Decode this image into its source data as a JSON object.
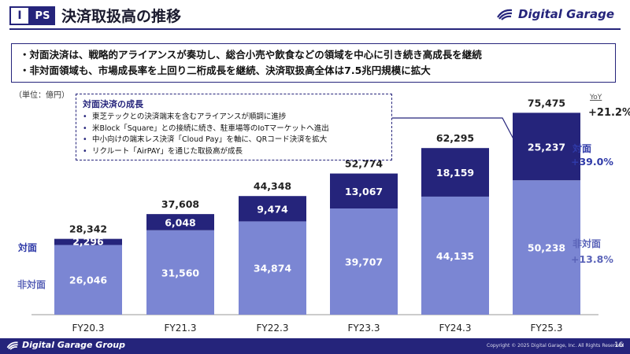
{
  "header": {
    "section_number": "I",
    "section_name": "PS",
    "title": "決済取扱高の推移",
    "brand": "Digital Garage"
  },
  "summary": [
    "・対面決済は、戦略的アライアンスが奏功し、総合小売や飲食などの領域を中心に引き続き高成長を継続",
    "・非対面領域も、市場成長率を上回り二桁成長を継続、決済取扱高全体は7.5兆円規模に拡大"
  ],
  "unit_note": "（単位：億円）",
  "yoy_heading": "YoY",
  "callout": {
    "title": "対面決済の成長",
    "items": [
      "東芝テックとの決済端末を含むアライアンスが順調に進捗",
      "米Block「Square」との接続に続き、駐車場等のIoTマーケットへ進出",
      "中小向けの端末レス決済「Cloud Pay」を軸に、QRコード決済を拡大",
      "リクルート「AirPAY」を通じた取扱高が成長"
    ]
  },
  "chart_data": {
    "type": "bar",
    "stacked": true,
    "categories": [
      "FY20.3",
      "FY21.3",
      "FY22.3",
      "FY23.3",
      "FY24.3",
      "FY25.3"
    ],
    "series": [
      {
        "name": "非対面",
        "values": [
          26046,
          31560,
          34874,
          39707,
          44135,
          50238
        ],
        "color": "#7b86d3"
      },
      {
        "name": "対面",
        "values": [
          2296,
          6048,
          9474,
          13067,
          18159,
          25237
        ],
        "color": "#25247b"
      }
    ],
    "totals": [
      28342,
      37608,
      44348,
      52774,
      62295,
      75475
    ],
    "value_labels": {
      "offline": [
        "26,046",
        "31,560",
        "34,874",
        "39,707",
        "44,135",
        "50,238"
      ],
      "online": [
        "2,296",
        "6,048",
        "9,474",
        "13,067",
        "18,159",
        "25,237"
      ],
      "totals": [
        "28,342",
        "37,608",
        "44,348",
        "52,774",
        "62,295",
        "75,475"
      ]
    },
    "left_labels": {
      "online": "対面",
      "offline": "非対面"
    },
    "yoy": {
      "total": "+21.2%",
      "online_label": "対面",
      "online": "+39.0%",
      "offline_label": "非対面",
      "offline": "+13.8%"
    },
    "ylim": [
      0,
      80000
    ],
    "grid": false,
    "colors": {
      "offline": "#7b86d3",
      "online": "#25247b",
      "yoy_accent": "#2f3aa8"
    }
  },
  "footer": {
    "brand": "Digital Garage Group",
    "copyright": "Copyright © 2025 Digital Garage, Inc. All Rights Reserved",
    "page_number": "16"
  }
}
